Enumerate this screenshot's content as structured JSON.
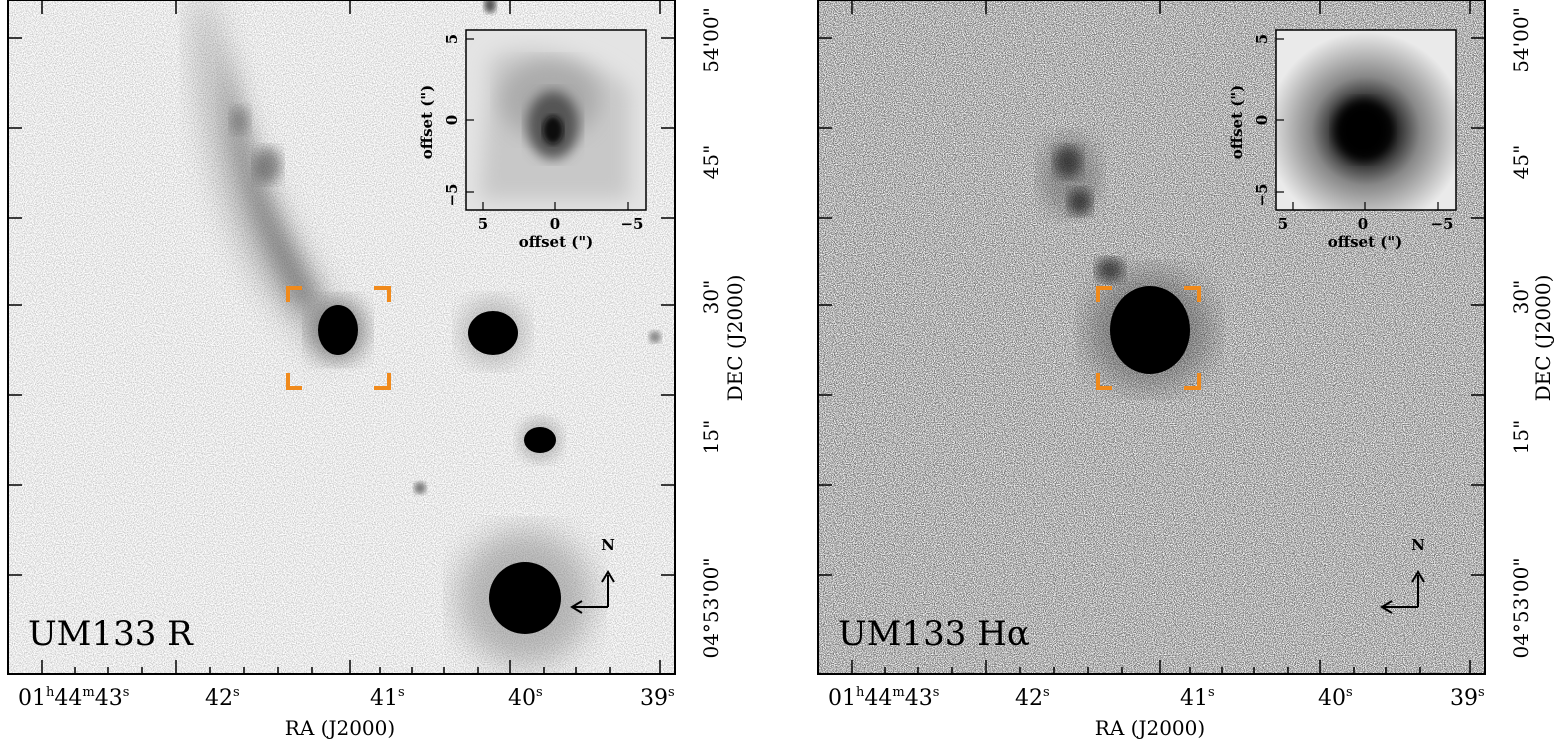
{
  "panels": [
    {
      "id": "r",
      "label": "UM133 R",
      "ra_ticks": [
        "01h44m43s",
        "42s",
        "41s",
        "40s",
        "39s"
      ],
      "ra_axis_label": "RA (J2000)",
      "dec_ticks": [
        "54'00\"",
        "45\"",
        "30\"",
        "15\"",
        "04°53'00\""
      ],
      "dec_axis_label": "DEC (J2000)",
      "inset": {
        "x_ticks": [
          "5",
          "0",
          "−5"
        ],
        "y_ticks": [
          "5",
          "0",
          "−5"
        ],
        "xlabel": "offset (\")",
        "ylabel": "offset (\")"
      },
      "compass_north": "N"
    },
    {
      "id": "ha",
      "label": "UM133 Hα",
      "ra_ticks": [
        "01h44m43s",
        "42s",
        "41s",
        "40s",
        "39s"
      ],
      "ra_axis_label": "RA (J2000)",
      "dec_ticks": [
        "54'00\"",
        "45\"",
        "30\"",
        "15\"",
        "04°53'00\""
      ],
      "dec_axis_label": "DEC (J2000)",
      "inset": {
        "x_ticks": [
          "5",
          "0",
          "−5"
        ],
        "y_ticks": [
          "5",
          "0",
          "−5"
        ],
        "xlabel": "offset (\")",
        "ylabel": "offset (\")"
      },
      "compass_north": "N"
    }
  ],
  "colors": {
    "bracket": "#f08a1c",
    "frame": "#000000"
  }
}
